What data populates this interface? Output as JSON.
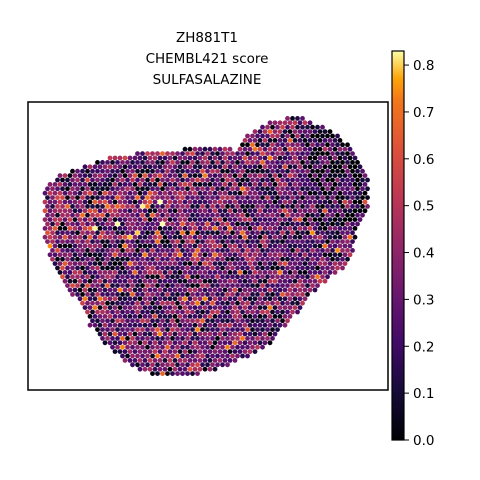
{
  "chart_data": {
    "type": "scatter",
    "title": [
      "ZH881T1",
      "CHEMBL421 score",
      "SULFASALAZINE"
    ],
    "xlabel": "",
    "ylabel": "",
    "grid": false,
    "legend": "none",
    "colormap": "inferno",
    "colorbar": {
      "range": [
        0.0,
        0.83
      ],
      "ticks": [
        0.0,
        0.1,
        0.2,
        0.3,
        0.4,
        0.5,
        0.6,
        0.7,
        0.8
      ],
      "tick_labels": [
        "0.0",
        "0.1",
        "0.2",
        "0.3",
        "0.4",
        "0.5",
        "0.6",
        "0.7",
        "0.8"
      ]
    },
    "score_distribution": {
      "typical": 0.3,
      "min": 0.0,
      "max": 0.83
    },
    "colors": {
      "frame": "#000000",
      "background": "#ffffff"
    }
  }
}
